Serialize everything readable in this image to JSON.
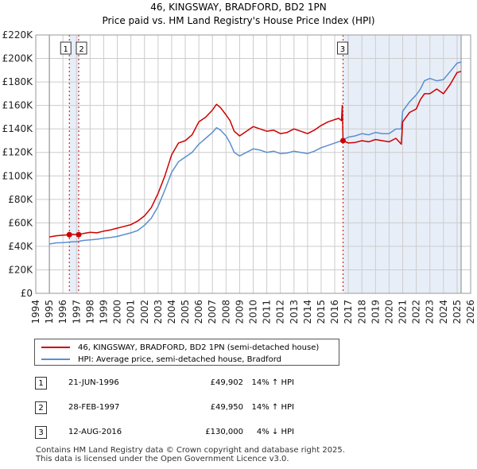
{
  "chart_data": {
    "type": "line",
    "title": "46, KINGSWAY, BRADFORD, BD2 1PN",
    "subtitle": "Price paid vs. HM Land Registry's House Price Index (HPI)",
    "xlabel": "",
    "ylabel": "",
    "xlim": [
      1994,
      2026
    ],
    "ylim": [
      0,
      220000
    ],
    "grid": true,
    "x_ticks": [
      "1994",
      "1995",
      "1996",
      "1997",
      "1998",
      "1999",
      "2000",
      "2001",
      "2002",
      "2003",
      "2004",
      "2005",
      "2006",
      "2007",
      "2008",
      "2009",
      "2010",
      "2011",
      "2012",
      "2013",
      "2014",
      "2015",
      "2016",
      "2017",
      "2018",
      "2019",
      "2020",
      "2021",
      "2022",
      "2023",
      "2024",
      "2025",
      "2026"
    ],
    "y_ticks": [
      {
        "value": 0,
        "label": "£0"
      },
      {
        "value": 20000,
        "label": "£20K"
      },
      {
        "value": 40000,
        "label": "£40K"
      },
      {
        "value": 60000,
        "label": "£60K"
      },
      {
        "value": 80000,
        "label": "£80K"
      },
      {
        "value": 100000,
        "label": "£100K"
      },
      {
        "value": 120000,
        "label": "£120K"
      },
      {
        "value": 140000,
        "label": "£140K"
      },
      {
        "value": 160000,
        "label": "£160K"
      },
      {
        "value": 180000,
        "label": "£180K"
      },
      {
        "value": 200000,
        "label": "£200K"
      },
      {
        "value": 220000,
        "label": "£220K"
      }
    ],
    "data_start_x": 1995,
    "data_end_x": 2025.3,
    "shaded_ranges": [
      [
        1996.47,
        1997.16
      ],
      [
        2016.61,
        2025.3
      ]
    ],
    "series": [
      {
        "name": "46, KINGSWAY, BRADFORD, BD2 1PN (semi-detached house)",
        "color": "#cc0000",
        "x": [
          1995,
          1995.5,
          1996,
          1996.47,
          1996.7,
          1997.16,
          1997.5,
          1998,
          1998.5,
          1999,
          1999.5,
          2000,
          2000.5,
          2001,
          2001.5,
          2002,
          2002.5,
          2003,
          2003.5,
          2004,
          2004.5,
          2005,
          2005.5,
          2006,
          2006.5,
          2007,
          2007.3,
          2007.6,
          2008,
          2008.3,
          2008.6,
          2009,
          2009.5,
          2010,
          2010.5,
          2011,
          2011.5,
          2012,
          2012.5,
          2013,
          2013.5,
          2014,
          2014.5,
          2015,
          2015.5,
          2016,
          2016.3,
          2016.5,
          2016.55,
          2016.61,
          2017,
          2017.5,
          2018,
          2018.5,
          2019,
          2019.5,
          2020,
          2020.5,
          2020.9,
          2021,
          2021.5,
          2022,
          2022.3,
          2022.6,
          2023,
          2023.5,
          2024,
          2024.5,
          2025,
          2025.3
        ],
        "y": [
          48000,
          49000,
          49500,
          49902,
          50200,
          49950,
          51000,
          52000,
          51500,
          53000,
          54000,
          55500,
          57000,
          58500,
          61500,
          66000,
          73000,
          85000,
          100000,
          118000,
          128000,
          130000,
          135000,
          146000,
          150000,
          156000,
          161000,
          158000,
          152000,
          147000,
          138000,
          134000,
          138000,
          142000,
          140000,
          138000,
          139000,
          136000,
          137000,
          140000,
          138000,
          136000,
          139000,
          143000,
          146000,
          148000,
          149000,
          147000,
          160000,
          130000,
          128000,
          128500,
          130000,
          129000,
          131000,
          130000,
          129000,
          132000,
          127000,
          146000,
          154000,
          157000,
          165000,
          170000,
          170000,
          174000,
          170000,
          178000,
          188000,
          189000
        ]
      },
      {
        "name": "HPI: Average price, semi-detached house, Bradford",
        "color": "#5b8fcf",
        "x": [
          1995,
          1995.5,
          1996,
          1996.5,
          1997,
          1997.5,
          1998,
          1998.5,
          1999,
          1999.5,
          2000,
          2000.5,
          2001,
          2001.5,
          2002,
          2002.5,
          2003,
          2003.5,
          2004,
          2004.5,
          2005,
          2005.5,
          2006,
          2006.5,
          2007,
          2007.3,
          2007.6,
          2008,
          2008.3,
          2008.6,
          2009,
          2009.5,
          2010,
          2010.5,
          2011,
          2011.5,
          2012,
          2012.5,
          2013,
          2013.5,
          2014,
          2014.5,
          2015,
          2015.5,
          2016,
          2016.5,
          2017,
          2017.5,
          2018,
          2018.5,
          2019,
          2019.5,
          2020,
          2020.5,
          2020.9,
          2021,
          2021.5,
          2022,
          2022.3,
          2022.6,
          2023,
          2023.5,
          2024,
          2024.5,
          2025,
          2025.3
        ],
        "y": [
          42000,
          43000,
          43200,
          43700,
          44000,
          45000,
          45500,
          46000,
          47000,
          47500,
          48500,
          50000,
          51500,
          53500,
          58000,
          64000,
          74000,
          88000,
          103000,
          112000,
          116000,
          120000,
          127000,
          132000,
          137000,
          141000,
          139000,
          134000,
          128000,
          120000,
          117000,
          120000,
          123000,
          122000,
          120000,
          121000,
          119000,
          119500,
          121000,
          120000,
          119000,
          121000,
          124000,
          126000,
          128000,
          130000,
          133000,
          134000,
          136000,
          135000,
          137000,
          136000,
          136000,
          140000,
          140000,
          155000,
          163000,
          169000,
          174000,
          181000,
          183000,
          181000,
          182000,
          189000,
          196000,
          197000
        ]
      }
    ],
    "sales": [
      {
        "id": "1",
        "x": 1996.47,
        "price": 49902
      },
      {
        "id": "2",
        "x": 1997.16,
        "price": 49950
      },
      {
        "id": "3",
        "x": 2016.61,
        "price": 130000
      }
    ]
  },
  "legend": {
    "property_label": "46, KINGSWAY, BRADFORD, BD2 1PN (semi-detached house)",
    "hpi_label": "HPI: Average price, semi-detached house, Bradford"
  },
  "sales_table": [
    {
      "num": "1",
      "date": "21-JUN-1996",
      "price": "£49,902",
      "hpi": "14% ↑ HPI"
    },
    {
      "num": "2",
      "date": "28-FEB-1997",
      "price": "£49,950",
      "hpi": "14% ↑ HPI"
    },
    {
      "num": "3",
      "date": "12-AUG-2016",
      "price": "£130,000",
      "hpi": "4% ↓ HPI"
    }
  ],
  "footer": {
    "line1": "Contains HM Land Registry data © Crown copyright and database right 2025.",
    "line2": "This data is licensed under the Open Government Licence v3.0."
  },
  "colors": {
    "property": "#cc0000",
    "hpi": "#5b8fcf",
    "shade": "#e8eef8",
    "grid": "#cccccc",
    "sale_line": "#cc0000"
  }
}
